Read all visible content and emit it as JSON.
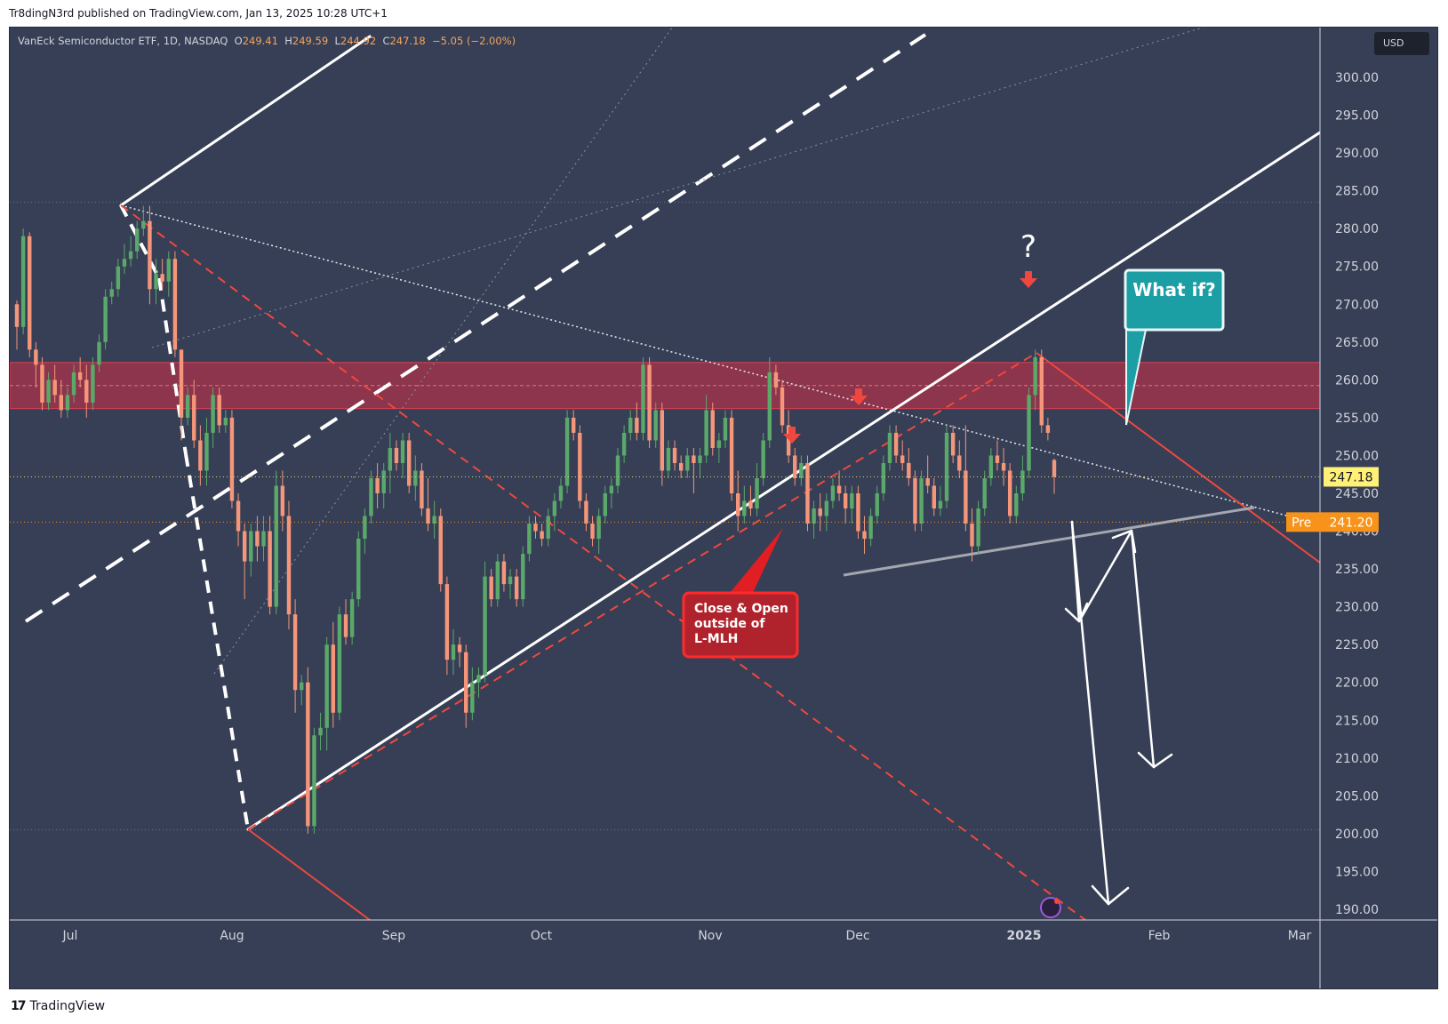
{
  "publisher": {
    "text": "Tr8dingN3rd published on TradingView.com, Jan 13, 2025 10:28 UTC+1"
  },
  "legend": {
    "symbol": "VanEck Semiconductor ETF, 1D, NASDAQ",
    "o_label": "O",
    "o": "249.41",
    "h_label": "H",
    "h": "249.59",
    "l_label": "L",
    "l": "244.92",
    "c_label": "C",
    "c": "247.18",
    "change": "−5.05 (−2.00%)"
  },
  "currency": "USD",
  "footer": {
    "brand": "TradingView",
    "mark": "17"
  },
  "colors": {
    "bg": "#363f55",
    "up": "#5aa96a",
    "down": "#f5967a",
    "red": "#f0483e",
    "zone": "#a9334a",
    "teal": "#1c9ea5"
  },
  "chart_data": {
    "type": "candlestick",
    "ylim": [
      188,
      305
    ],
    "y_ticks": [
      "300.00",
      "295.00",
      "290.00",
      "285.00",
      "280.00",
      "275.00",
      "270.00",
      "265.00",
      "260.00",
      "255.00",
      "250.00",
      "245.00",
      "240.00",
      "235.00",
      "230.00",
      "225.00",
      "220.00",
      "215.00",
      "210.00",
      "205.00",
      "200.00",
      "195.00",
      "190.00"
    ],
    "x_ticks": [
      "Jul",
      "Aug",
      "Sep",
      "Oct",
      "Nov",
      "Dec",
      "2025",
      "Feb",
      "Mar"
    ],
    "last_price": "247.18",
    "pre_label": "Pre",
    "pre_price": "241.20",
    "resistance_zone": [
      256.2,
      262.3
    ],
    "candles": [
      [
        270,
        270.5,
        264,
        267
      ],
      [
        267,
        280,
        266,
        279
      ],
      [
        279,
        279.5,
        263,
        264
      ],
      [
        264,
        265,
        259,
        262
      ],
      [
        262,
        263,
        256,
        257
      ],
      [
        257,
        261,
        256,
        260
      ],
      [
        260,
        262,
        257,
        258
      ],
      [
        258,
        260,
        255,
        256
      ],
      [
        256,
        259,
        255,
        258
      ],
      [
        258,
        262,
        257,
        261
      ],
      [
        261,
        263,
        259,
        260
      ],
      [
        260,
        262,
        255,
        257
      ],
      [
        257,
        263,
        256,
        262
      ],
      [
        262,
        266,
        261,
        265
      ],
      [
        265,
        272,
        264,
        271
      ],
      [
        271,
        273,
        270,
        272
      ],
      [
        272,
        276,
        271,
        275
      ],
      [
        275,
        278,
        274,
        276
      ],
      [
        276,
        279,
        275,
        277
      ],
      [
        277,
        281,
        276,
        280
      ],
      [
        280,
        283,
        279,
        281
      ],
      [
        281,
        283,
        270,
        272
      ],
      [
        272,
        276,
        270,
        274
      ],
      [
        274,
        276,
        272,
        273
      ],
      [
        273,
        277,
        271,
        276
      ],
      [
        276,
        277,
        263,
        264
      ],
      [
        264,
        264,
        252,
        255
      ],
      [
        255,
        259,
        254,
        258
      ],
      [
        258,
        260,
        251,
        252
      ],
      [
        252,
        254,
        246,
        248
      ],
      [
        248,
        255,
        246,
        253
      ],
      [
        253,
        259,
        251,
        258
      ],
      [
        258,
        259,
        253,
        254
      ],
      [
        254,
        256,
        253,
        255
      ],
      [
        255,
        256,
        243,
        244
      ],
      [
        244,
        245,
        238,
        240
      ],
      [
        240,
        241,
        231,
        236
      ],
      [
        236,
        241,
        234,
        240
      ],
      [
        240,
        242,
        236,
        238
      ],
      [
        238,
        242,
        236,
        240
      ],
      [
        240,
        242,
        229,
        230
      ],
      [
        230,
        248,
        229,
        246
      ],
      [
        246,
        248,
        240,
        242
      ],
      [
        242,
        244,
        227,
        229
      ],
      [
        229,
        231,
        216,
        219
      ],
      [
        219,
        221,
        217,
        220
      ],
      [
        220,
        222,
        200,
        201
      ],
      [
        201,
        214,
        200,
        213
      ],
      [
        213,
        216,
        211,
        214
      ],
      [
        214,
        226,
        211,
        225
      ],
      [
        225,
        228,
        214,
        216
      ],
      [
        216,
        230,
        215,
        229
      ],
      [
        229,
        231,
        225,
        226
      ],
      [
        226,
        232,
        225,
        231
      ],
      [
        231,
        240,
        230,
        239
      ],
      [
        239,
        243,
        237,
        242
      ],
      [
        242,
        248,
        241,
        247
      ],
      [
        247,
        249,
        243,
        245
      ],
      [
        245,
        249,
        243,
        248
      ],
      [
        248,
        253,
        245,
        251
      ],
      [
        251,
        252,
        248,
        249
      ],
      [
        249,
        253,
        247,
        252
      ],
      [
        252,
        253,
        245,
        246
      ],
      [
        246,
        250,
        244,
        248
      ],
      [
        248,
        249,
        242,
        243
      ],
      [
        243,
        247,
        240,
        241
      ],
      [
        241,
        244,
        239,
        242
      ],
      [
        242,
        243,
        232,
        233
      ],
      [
        233,
        234,
        221,
        223
      ],
      [
        223,
        227,
        221,
        225
      ],
      [
        225,
        226,
        222,
        224
      ],
      [
        224,
        225,
        214,
        216
      ],
      [
        216,
        222,
        215,
        220
      ],
      [
        220,
        222,
        218,
        221
      ],
      [
        221,
        236,
        220,
        234
      ],
      [
        234,
        235,
        230,
        231
      ],
      [
        231,
        237,
        230,
        236
      ],
      [
        236,
        237,
        232,
        233
      ],
      [
        233,
        235,
        231,
        234
      ],
      [
        234,
        235,
        230,
        231
      ],
      [
        231,
        238,
        230,
        237
      ],
      [
        237,
        242,
        236,
        241
      ],
      [
        241,
        242,
        239,
        240
      ],
      [
        240,
        241,
        238,
        239
      ],
      [
        239,
        243,
        238,
        242
      ],
      [
        242,
        245,
        240,
        244
      ],
      [
        244,
        247,
        243,
        246
      ],
      [
        246,
        256,
        245,
        255
      ],
      [
        255,
        256,
        252,
        253
      ],
      [
        253,
        254,
        243,
        244
      ],
      [
        244,
        245,
        240,
        241
      ],
      [
        241,
        242,
        238,
        239
      ],
      [
        239,
        243,
        237,
        242
      ],
      [
        242,
        246,
        241,
        245
      ],
      [
        245,
        247,
        243,
        246
      ],
      [
        246,
        251,
        245,
        250
      ],
      [
        250,
        254,
        249,
        253
      ],
      [
        253,
        256,
        252,
        255
      ],
      [
        255,
        257,
        252,
        253
      ],
      [
        253,
        263,
        252,
        262
      ],
      [
        262,
        263,
        251,
        252
      ],
      [
        252,
        257,
        251,
        256
      ],
      [
        256,
        257,
        246,
        248
      ],
      [
        248,
        252,
        247,
        251
      ],
      [
        251,
        252,
        248,
        249
      ],
      [
        249,
        250,
        247,
        248
      ],
      [
        248,
        251,
        247,
        250
      ],
      [
        250,
        251,
        245,
        249
      ],
      [
        249,
        251,
        247,
        250
      ],
      [
        250,
        258,
        249,
        256
      ],
      [
        256,
        257,
        250,
        251
      ],
      [
        251,
        253,
        249,
        252
      ],
      [
        252,
        256,
        251,
        255
      ],
      [
        255,
        256,
        244,
        245
      ],
      [
        245,
        248,
        240,
        242
      ],
      [
        242,
        246,
        241,
        244
      ],
      [
        244,
        246,
        242,
        243
      ],
      [
        243,
        249,
        242,
        247
      ],
      [
        247,
        253,
        246,
        252
      ],
      [
        252,
        263,
        251,
        261
      ],
      [
        261,
        262,
        258,
        259
      ],
      [
        259,
        260,
        253,
        254
      ],
      [
        254,
        256,
        249,
        250
      ],
      [
        250,
        251,
        246,
        247
      ],
      [
        247,
        250,
        246,
        249
      ],
      [
        249,
        250,
        240,
        241
      ],
      [
        241,
        244,
        239,
        243
      ],
      [
        243,
        245,
        240,
        242
      ],
      [
        242,
        245,
        240,
        244
      ],
      [
        244,
        247,
        243,
        246
      ],
      [
        246,
        248,
        244,
        245
      ],
      [
        245,
        246,
        241,
        243
      ],
      [
        243,
        246,
        241,
        245
      ],
      [
        245,
        246,
        239,
        240
      ],
      [
        240,
        242,
        237,
        239
      ],
      [
        239,
        243,
        238,
        242
      ],
      [
        242,
        246,
        241,
        245
      ],
      [
        245,
        250,
        244,
        249
      ],
      [
        249,
        254,
        248,
        253
      ],
      [
        253,
        254,
        249,
        250
      ],
      [
        250,
        252,
        248,
        249
      ],
      [
        249,
        251,
        246,
        247
      ],
      [
        247,
        248,
        240,
        241
      ],
      [
        241,
        248,
        240,
        247
      ],
      [
        247,
        250,
        245,
        246
      ],
      [
        246,
        247,
        242,
        243
      ],
      [
        243,
        246,
        242,
        244
      ],
      [
        244,
        254,
        243,
        253
      ],
      [
        253,
        254,
        249,
        250
      ],
      [
        250,
        252,
        247,
        248
      ],
      [
        248,
        254,
        240,
        241
      ],
      [
        241,
        243,
        236,
        238
      ],
      [
        238,
        244,
        237,
        243
      ],
      [
        243,
        248,
        242,
        247
      ],
      [
        247,
        251,
        246,
        250
      ],
      [
        250,
        252,
        248,
        249
      ],
      [
        249,
        251,
        246,
        248
      ],
      [
        248,
        249,
        241,
        242
      ],
      [
        242,
        246,
        241,
        245
      ],
      [
        245,
        250,
        244,
        248
      ],
      [
        248,
        259,
        247,
        258
      ],
      [
        258,
        264,
        256,
        263
      ],
      [
        263,
        264,
        253,
        254
      ],
      [
        254,
        255,
        252,
        253
      ],
      [
        249.41,
        249.59,
        244.92,
        247.18
      ]
    ]
  },
  "annotations": {
    "callout_red": "Close & Open\noutside of\nL-MLH",
    "callout_teal": "What if?",
    "question": "?"
  }
}
